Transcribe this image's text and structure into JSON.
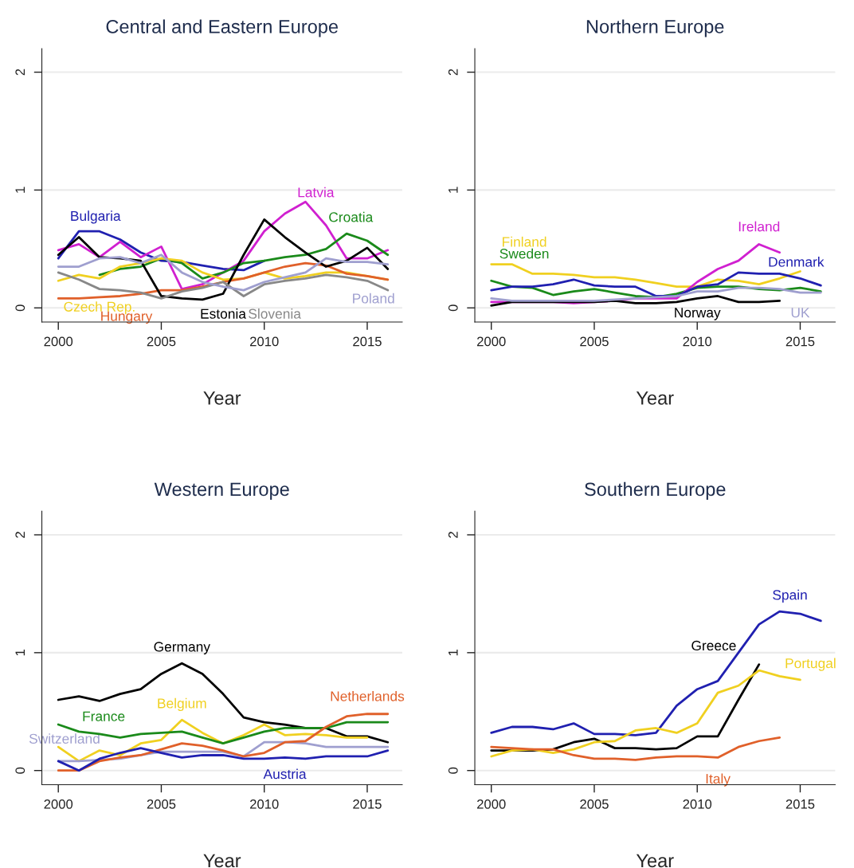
{
  "chart_data": [
    {
      "type": "line",
      "title": "Central and Eastern Europe",
      "xlabel": "Year",
      "x": [
        2000,
        2001,
        2002,
        2003,
        2004,
        2005,
        2006,
        2007,
        2008,
        2009,
        2010,
        2011,
        2012,
        2013,
        2014,
        2015,
        2016
      ],
      "xlim": [
        1999.2,
        2016.7
      ],
      "xticks": [
        2000,
        2005,
        2010,
        2015
      ],
      "ylim": [
        -0.12,
        2.2
      ],
      "yticks": [
        0,
        1,
        2
      ],
      "grid": "y",
      "legend": false,
      "series": [
        {
          "name": "Bulgaria",
          "color": "#2020b0",
          "values": [
            0.42,
            0.65,
            0.65,
            0.58,
            0.47,
            0.4,
            0.39,
            0.36,
            0.33,
            0.32,
            0.4,
            null,
            null,
            null,
            null,
            null,
            null
          ]
        },
        {
          "name": "Latvia",
          "color": "#d020d0",
          "values": [
            0.49,
            0.54,
            0.43,
            0.56,
            0.43,
            0.52,
            0.16,
            0.2,
            0.3,
            0.4,
            0.65,
            0.8,
            0.9,
            0.7,
            0.42,
            0.42,
            0.49
          ]
        },
        {
          "name": "Croatia",
          "color": "#1a8a1a",
          "values": [
            null,
            null,
            0.28,
            0.33,
            0.35,
            0.42,
            0.38,
            0.25,
            0.3,
            0.38,
            0.4,
            0.43,
            0.45,
            0.5,
            0.63,
            0.57,
            0.45
          ]
        },
        {
          "name": "Czech Rep.",
          "color": "#f0d020",
          "values": [
            0.23,
            0.28,
            0.25,
            0.35,
            0.38,
            0.42,
            0.4,
            0.3,
            0.24,
            0.25,
            0.3,
            0.25,
            0.27,
            0.3,
            0.3,
            0.27,
            0.24
          ]
        },
        {
          "name": "Hungary",
          "color": "#e0602a",
          "values": [
            0.08,
            0.08,
            0.09,
            0.1,
            0.12,
            0.15,
            0.15,
            0.18,
            0.22,
            0.25,
            0.3,
            0.35,
            0.38,
            0.36,
            0.29,
            0.27,
            0.24
          ]
        },
        {
          "name": "Estonia",
          "color": "#000000",
          "values": [
            0.45,
            0.6,
            0.43,
            0.42,
            0.4,
            0.1,
            0.08,
            0.07,
            0.12,
            0.45,
            0.75,
            0.6,
            0.47,
            0.35,
            0.4,
            0.51,
            0.33
          ]
        },
        {
          "name": "Slovenia",
          "color": "#888888",
          "values": [
            0.3,
            0.24,
            0.16,
            0.15,
            0.13,
            0.08,
            0.14,
            0.17,
            0.22,
            0.1,
            0.2,
            0.23,
            0.25,
            0.28,
            0.26,
            0.23,
            0.15
          ]
        },
        {
          "name": "Poland",
          "color": "#9f9fcf",
          "values": [
            0.35,
            0.35,
            0.42,
            0.43,
            0.38,
            0.45,
            0.3,
            0.22,
            0.18,
            0.15,
            0.22,
            0.26,
            0.3,
            0.42,
            0.39,
            0.39,
            0.37
          ]
        }
      ]
    },
    {
      "type": "line",
      "title": "Northern Europe",
      "xlabel": "Year",
      "x": [
        2000,
        2001,
        2002,
        2003,
        2004,
        2005,
        2006,
        2007,
        2008,
        2009,
        2010,
        2011,
        2012,
        2013,
        2014,
        2015,
        2016
      ],
      "xlim": [
        1999.2,
        2016.7
      ],
      "xticks": [
        2000,
        2005,
        2010,
        2015
      ],
      "ylim": [
        -0.12,
        2.2
      ],
      "yticks": [
        0,
        1,
        2
      ],
      "grid": "y",
      "legend": false,
      "series": [
        {
          "name": "Finland",
          "color": "#f0d020",
          "values": [
            0.37,
            0.37,
            0.29,
            0.29,
            0.28,
            0.26,
            0.26,
            0.24,
            0.21,
            0.18,
            0.18,
            0.24,
            0.23,
            0.2,
            0.25,
            0.31,
            null
          ]
        },
        {
          "name": "Sweden",
          "color": "#1a8a1a",
          "values": [
            0.23,
            0.18,
            0.17,
            0.11,
            0.14,
            0.16,
            0.13,
            0.1,
            0.09,
            0.12,
            0.17,
            0.18,
            0.18,
            0.16,
            0.15,
            0.17,
            0.14
          ]
        },
        {
          "name": "Ireland",
          "color": "#d020d0",
          "values": [
            0.05,
            0.05,
            0.05,
            0.05,
            0.04,
            0.05,
            0.06,
            0.08,
            0.08,
            0.08,
            0.22,
            0.33,
            0.4,
            0.54,
            0.47,
            null,
            null
          ]
        },
        {
          "name": "Denmark",
          "color": "#2020b0",
          "values": [
            0.15,
            0.18,
            0.18,
            0.2,
            0.24,
            0.19,
            0.18,
            0.18,
            0.1,
            0.1,
            0.18,
            0.2,
            0.3,
            0.29,
            0.29,
            0.25,
            0.19
          ]
        },
        {
          "name": "Norway",
          "color": "#000000",
          "values": [
            0.02,
            0.05,
            0.05,
            0.05,
            0.05,
            0.05,
            0.06,
            0.04,
            0.04,
            0.05,
            0.08,
            0.1,
            0.05,
            0.05,
            0.06,
            null,
            null
          ]
        },
        {
          "name": "UK",
          "color": "#9f9fcf",
          "values": [
            0.08,
            0.06,
            0.06,
            0.06,
            0.06,
            0.06,
            0.07,
            0.08,
            0.09,
            0.1,
            0.14,
            0.14,
            0.17,
            0.17,
            0.16,
            0.13,
            0.13
          ]
        }
      ]
    },
    {
      "type": "line",
      "title": "Western Europe",
      "xlabel": "Year",
      "x": [
        2000,
        2001,
        2002,
        2003,
        2004,
        2005,
        2006,
        2007,
        2008,
        2009,
        2010,
        2011,
        2012,
        2013,
        2014,
        2015,
        2016
      ],
      "xlim": [
        1999.2,
        2016.7
      ],
      "xticks": [
        2000,
        2005,
        2010,
        2015
      ],
      "ylim": [
        -0.12,
        2.2
      ],
      "yticks": [
        0,
        1,
        2
      ],
      "grid": "y",
      "legend": false,
      "series": [
        {
          "name": "Germany",
          "color": "#000000",
          "values": [
            0.6,
            0.63,
            0.59,
            0.65,
            0.69,
            0.82,
            0.91,
            0.82,
            0.65,
            0.45,
            0.41,
            0.39,
            0.36,
            0.36,
            0.29,
            0.29,
            0.24
          ]
        },
        {
          "name": "Belgium",
          "color": "#f0d020",
          "values": [
            0.2,
            0.08,
            0.17,
            0.13,
            0.23,
            0.26,
            0.43,
            0.32,
            0.23,
            0.3,
            0.39,
            0.3,
            0.31,
            0.3,
            0.28,
            0.28,
            null
          ]
        },
        {
          "name": "France",
          "color": "#1a8a1a",
          "values": [
            0.39,
            0.33,
            0.31,
            0.28,
            0.31,
            0.32,
            0.33,
            0.28,
            0.23,
            0.28,
            0.33,
            0.36,
            0.36,
            0.36,
            0.41,
            0.41,
            0.41
          ]
        },
        {
          "name": "Switzerland",
          "color": "#9f9fcf",
          "values": [
            0.08,
            0.08,
            0.09,
            0.1,
            0.13,
            0.16,
            0.16,
            0.16,
            0.16,
            0.12,
            0.24,
            0.24,
            0.23,
            0.2,
            0.2,
            0.2,
            0.2
          ]
        },
        {
          "name": "Netherlands",
          "color": "#e0602a",
          "values": [
            0.0,
            0.0,
            0.08,
            0.11,
            0.13,
            0.18,
            0.23,
            0.21,
            0.17,
            0.12,
            0.15,
            0.24,
            0.25,
            0.37,
            0.46,
            0.48,
            0.48
          ]
        },
        {
          "name": "Austria",
          "color": "#2020b0",
          "values": [
            0.08,
            0.0,
            0.1,
            0.15,
            0.19,
            0.15,
            0.11,
            0.13,
            0.13,
            0.1,
            0.1,
            0.11,
            0.1,
            0.12,
            0.12,
            0.12,
            0.17
          ]
        }
      ]
    },
    {
      "type": "line",
      "title": "Southern Europe",
      "xlabel": "Year",
      "x": [
        2000,
        2001,
        2002,
        2003,
        2004,
        2005,
        2006,
        2007,
        2008,
        2009,
        2010,
        2011,
        2012,
        2013,
        2014,
        2015,
        2016
      ],
      "xlim": [
        1999.2,
        2016.7
      ],
      "xticks": [
        2000,
        2005,
        2010,
        2015
      ],
      "ylim": [
        -0.12,
        2.2
      ],
      "yticks": [
        0,
        1,
        2
      ],
      "grid": "y",
      "legend": false,
      "series": [
        {
          "name": "Spain",
          "color": "#2020b0",
          "values": [
            0.32,
            0.37,
            0.37,
            0.35,
            0.4,
            0.31,
            0.31,
            0.3,
            0.32,
            0.55,
            0.69,
            0.76,
            1.0,
            1.24,
            1.35,
            1.33,
            1.27
          ]
        },
        {
          "name": "Greece",
          "color": "#000000",
          "values": [
            0.17,
            0.17,
            0.17,
            0.18,
            0.24,
            0.27,
            0.19,
            0.19,
            0.18,
            0.19,
            0.29,
            0.29,
            0.6,
            0.9,
            null,
            null,
            null
          ]
        },
        {
          "name": "Portugal",
          "color": "#f0d020",
          "values": [
            0.12,
            0.17,
            0.18,
            0.15,
            0.18,
            0.24,
            0.25,
            0.34,
            0.36,
            0.32,
            0.4,
            0.66,
            0.72,
            0.85,
            0.8,
            0.77,
            null
          ]
        },
        {
          "name": "Italy",
          "color": "#e0602a",
          "values": [
            0.2,
            0.19,
            0.18,
            0.18,
            0.13,
            0.1,
            0.1,
            0.09,
            0.11,
            0.12,
            0.12,
            0.11,
            0.2,
            0.25,
            0.28,
            null,
            null
          ]
        }
      ]
    }
  ]
}
